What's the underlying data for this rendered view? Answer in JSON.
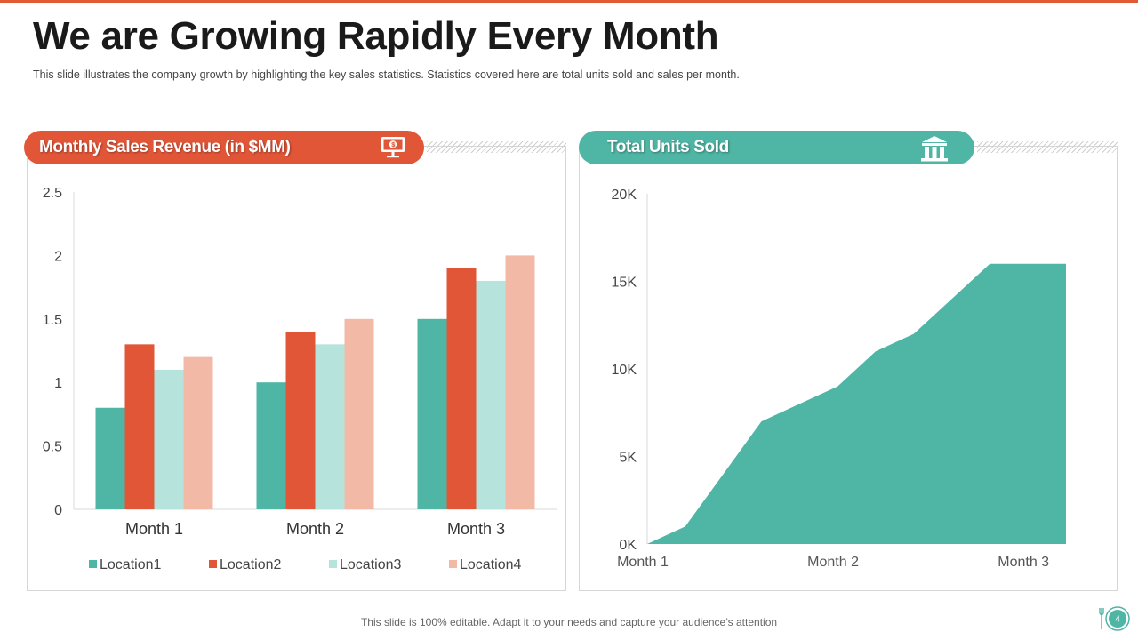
{
  "header": {
    "title": "We are Growing Rapidly Every Month",
    "subtitle": "This slide illustrates the company growth  by highlighting the key sales statistics. Statistics covered here are total units sold and sales per month."
  },
  "left_panel": {
    "label": "Monthly Sales Revenue (in $MM)",
    "icon": "monitor-dollar-icon"
  },
  "right_panel": {
    "label": "Total Units Sold",
    "icon": "bank-building-icon"
  },
  "footer": {
    "text": "This slide is 100% editable. Adapt it to your needs and capture your audience’s attention",
    "page_number": "4"
  },
  "colors": {
    "accent_orange": "#e25638",
    "accent_teal": "#4fb5a5",
    "light_teal": "#b7e3dd",
    "light_peach": "#f3b9a7"
  },
  "chart_data": [
    {
      "type": "bar",
      "title": "Monthly Sales Revenue (in $MM)",
      "categories": [
        "Month 1",
        "Month 2",
        "Month 3"
      ],
      "series": [
        {
          "name": "Location1",
          "values": [
            0.8,
            1.0,
            1.5
          ],
          "color": "#4fb5a5"
        },
        {
          "name": "Location2",
          "values": [
            1.3,
            1.4,
            1.9
          ],
          "color": "#e25638"
        },
        {
          "name": "Location3",
          "values": [
            1.1,
            1.3,
            1.8
          ],
          "color": "#b7e3dd"
        },
        {
          "name": "Location4",
          "values": [
            1.2,
            1.5,
            2.0
          ],
          "color": "#f3b9a7"
        }
      ],
      "yticks": [
        "0",
        "0.5",
        "1",
        "1.5",
        "2",
        "2.5"
      ],
      "ylim": [
        0,
        2.5
      ],
      "legend": "bottom"
    },
    {
      "type": "area",
      "title": "Total Units Sold",
      "x": [
        0,
        0.2,
        0.4,
        0.6,
        0.8,
        1.0,
        1.2,
        1.4,
        1.6,
        1.8,
        2.0,
        2.2
      ],
      "values": [
        0,
        1000,
        4000,
        7000,
        8000,
        9000,
        11000,
        12000,
        14000,
        16000,
        16000,
        16000
      ],
      "x_tick_labels": [
        "Month 1",
        "Month 2",
        "Month 3"
      ],
      "yticks": [
        "0K",
        "5K",
        "10K",
        "15K",
        "20K"
      ],
      "ylim": [
        0,
        20000
      ],
      "xlim": [
        0,
        2.2
      ],
      "color": "#4fb5a5"
    }
  ]
}
